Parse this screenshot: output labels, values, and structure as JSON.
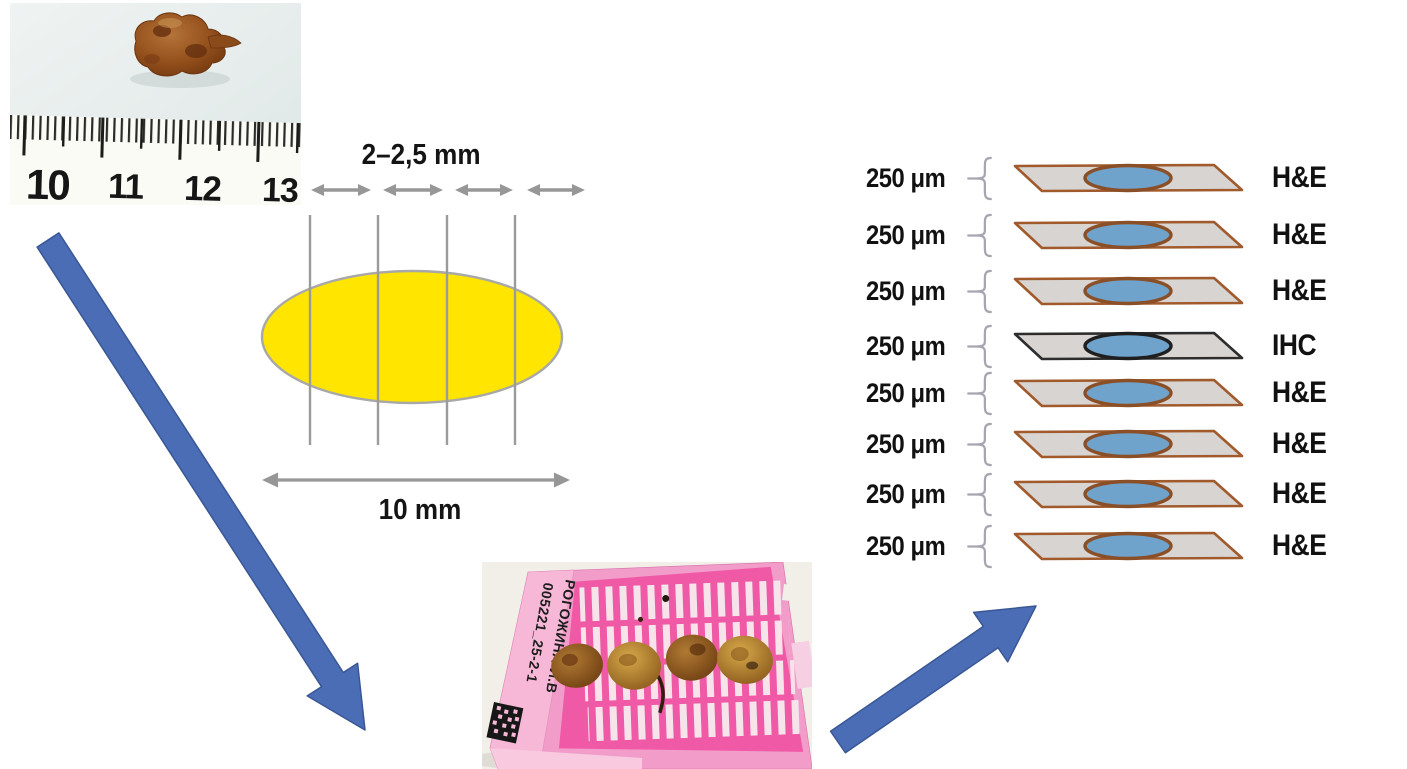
{
  "specimen_photo": {
    "ruler_numbers": [
      "10",
      "11",
      "12",
      "13"
    ]
  },
  "sectioning_diagram": {
    "section_width_label": "2–2,5 mm",
    "specimen_width_label": "10 mm"
  },
  "cassette_photo": {
    "label_line1": "005221_25-2-1",
    "label_line2": "РОГОЖИНА И.В"
  },
  "slides_panel": {
    "thickness_label": "250 μm",
    "rows": [
      {
        "stain": "H&E"
      },
      {
        "stain": "H&E"
      },
      {
        "stain": "H&E"
      },
      {
        "stain": "IHC"
      },
      {
        "stain": "H&E"
      },
      {
        "stain": "H&E"
      },
      {
        "stain": "H&E"
      },
      {
        "stain": "H&E"
      }
    ]
  },
  "colors": {
    "section_fill": "#FFE500",
    "diagram_gray": "#979797",
    "arrow_blue": "#4A6DB5",
    "arrow_blue_dark": "#3A5795",
    "slide_fill": "#D8D4D2",
    "slide_border_he": "#A05A2C",
    "slide_border_ihc": "#2D2D2D",
    "tissue_spot_blue": "#6FA3CB",
    "cassette_pink": "#F19CC9"
  }
}
